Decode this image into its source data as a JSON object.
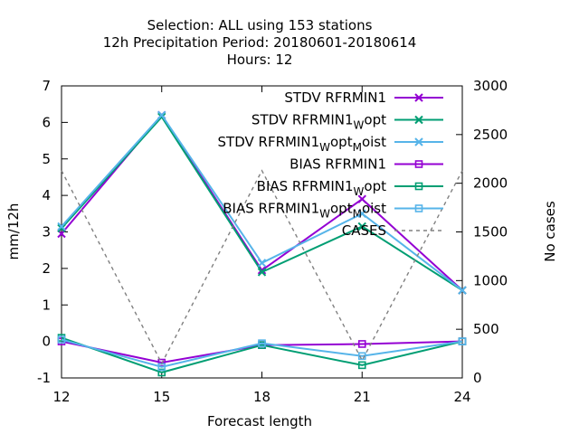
{
  "chart_data": {
    "type": "line",
    "title_lines": [
      "Selection: ALL using   153 stations",
      "12h Precipitation   Period: 20180601-20180614",
      "Hours:  12"
    ],
    "xlabel": "Forecast length",
    "ylabel": "mm/12h",
    "y2label": "No cases",
    "x": [
      12,
      15,
      18,
      21,
      24
    ],
    "xticks": [
      12,
      15,
      18,
      21,
      24
    ],
    "xlim": [
      12,
      24
    ],
    "ylim": [
      -1,
      7
    ],
    "yticks": [
      -1,
      0,
      1,
      2,
      3,
      4,
      5,
      6,
      7
    ],
    "y2lim": [
      0,
      3000
    ],
    "y2ticks": [
      0,
      500,
      1000,
      1500,
      2000,
      2500,
      3000
    ],
    "grid": false,
    "legend_position": "top-right",
    "series": [
      {
        "name": "STDV RFRMIN1",
        "name_parts": [
          {
            "t": "STDV RFRMIN1"
          }
        ],
        "color": "#9400d3",
        "marker": "x-cross",
        "dash": "",
        "axis": "y",
        "values": [
          2.95,
          6.2,
          1.95,
          3.9,
          1.4
        ]
      },
      {
        "name": "STDV RFRMIN1_Wopt",
        "name_parts": [
          {
            "t": "STDV RFRMIN1"
          },
          {
            "t": "W",
            "sub": true
          },
          {
            "t": "opt"
          }
        ],
        "color": "#009e73",
        "marker": "x-cross",
        "dash": "",
        "axis": "y",
        "values": [
          3.1,
          6.15,
          1.9,
          3.15,
          1.4
        ]
      },
      {
        "name": "STDV RFRMIN1_Wopt_Moist",
        "name_parts": [
          {
            "t": "STDV RFRMIN1"
          },
          {
            "t": "W",
            "sub": true
          },
          {
            "t": "opt"
          },
          {
            "t": "M",
            "sub": true
          },
          {
            "t": "oist"
          }
        ],
        "color": "#56b4e9",
        "marker": "x-cross",
        "dash": "",
        "axis": "y",
        "values": [
          3.15,
          6.2,
          2.15,
          3.5,
          1.4
        ]
      },
      {
        "name": "BIAS RFRMIN1",
        "name_parts": [
          {
            "t": "BIAS RFRMIN1"
          }
        ],
        "color": "#9400d3",
        "marker": "square",
        "dash": "",
        "axis": "y",
        "values": [
          0.0,
          -0.58,
          -0.1,
          -0.07,
          0.0
        ]
      },
      {
        "name": "BIAS RFRMIN1_Wopt",
        "name_parts": [
          {
            "t": "BIAS RFRMIN1"
          },
          {
            "t": "W",
            "sub": true
          },
          {
            "t": "opt"
          }
        ],
        "color": "#009e73",
        "marker": "square",
        "dash": "",
        "axis": "y",
        "values": [
          0.1,
          -0.85,
          -0.1,
          -0.65,
          0.0
        ]
      },
      {
        "name": "BIAS RFRMIN1_Wopt_Moist",
        "name_parts": [
          {
            "t": "BIAS RFRMIN1"
          },
          {
            "t": "W",
            "sub": true
          },
          {
            "t": "opt"
          },
          {
            "t": "M",
            "sub": true
          },
          {
            "t": "oist"
          }
        ],
        "color": "#56b4e9",
        "marker": "square",
        "dash": "",
        "axis": "y",
        "values": [
          0.05,
          -0.7,
          -0.05,
          -0.4,
          0.0
        ]
      },
      {
        "name": "CASES",
        "name_parts": [
          {
            "t": "CASES"
          }
        ],
        "color": "#808080",
        "marker": "none",
        "dash": "4,4",
        "axis": "y2",
        "values": [
          2130,
          150,
          2130,
          180,
          2130
        ]
      }
    ]
  }
}
